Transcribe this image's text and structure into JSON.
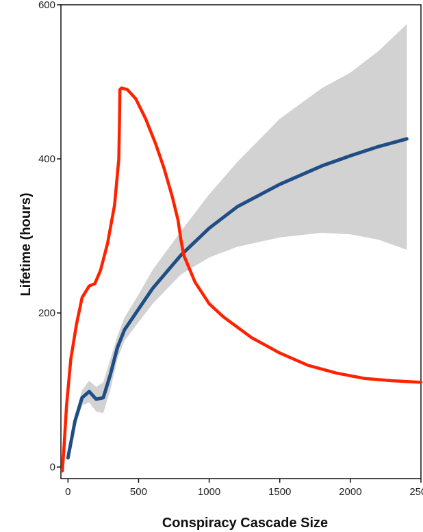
{
  "chart_data": {
    "type": "line",
    "title": "",
    "xlabel": "Conspiracy Cascade Size",
    "ylabel": "Lifetime (hours)",
    "xlim": [
      -50,
      2500
    ],
    "ylim": [
      -15,
      600
    ],
    "x_ticks": [
      0,
      500,
      1000,
      1500,
      2000,
      2500
    ],
    "y_ticks": [
      0,
      200,
      400,
      600
    ],
    "x_tick_labels": [
      "0",
      "500",
      "1000",
      "1500",
      "2000",
      "2500"
    ],
    "y_tick_labels": [
      "0",
      "200",
      "400",
      "600"
    ],
    "grid": false,
    "legend": "none",
    "series": [
      {
        "kind": "fit",
        "color": "#1f4e85",
        "x": [
          0,
          50,
          100,
          150,
          200,
          250,
          300,
          350,
          400,
          500,
          600,
          800,
          1000,
          1200,
          1500,
          1800,
          2000,
          2200,
          2400
        ],
        "y": [
          12,
          60,
          90,
          98,
          88,
          90,
          120,
          155,
          178,
          205,
          232,
          275,
          310,
          338,
          367,
          391,
          404,
          416,
          426
        ]
      },
      {
        "kind": "confidence-band",
        "color": "#d2d2d2",
        "x": [
          0,
          50,
          100,
          150,
          200,
          250,
          300,
          350,
          400,
          500,
          600,
          800,
          1000,
          1200,
          1500,
          1800,
          2000,
          2200,
          2400
        ],
        "upper": [
          16,
          68,
          100,
          112,
          104,
          110,
          140,
          170,
          194,
          224,
          256,
          306,
          354,
          396,
          452,
          492,
          512,
          540,
          575
        ],
        "lower": [
          8,
          52,
          80,
          84,
          72,
          70,
          100,
          140,
          164,
          188,
          212,
          250,
          272,
          286,
          298,
          304,
          302,
          295,
          282
        ]
      },
      {
        "kind": "annotation-curve",
        "color": "#ff2200",
        "x": [
          -40,
          -30,
          -10,
          20,
          60,
          100,
          150,
          190,
          230,
          280,
          330,
          360,
          365,
          368,
          380,
          420,
          480,
          550,
          620,
          680,
          740,
          780,
          800,
          820,
          900,
          1000,
          1100,
          1300,
          1500,
          1700,
          1900,
          2100,
          2300,
          2500
        ],
        "y": [
          -5,
          20,
          80,
          140,
          185,
          220,
          235,
          238,
          255,
          290,
          340,
          400,
          450,
          490,
          492,
          490,
          478,
          452,
          420,
          388,
          350,
          320,
          295,
          275,
          240,
          212,
          195,
          168,
          148,
          132,
          122,
          115,
          112,
          110
        ]
      }
    ]
  }
}
